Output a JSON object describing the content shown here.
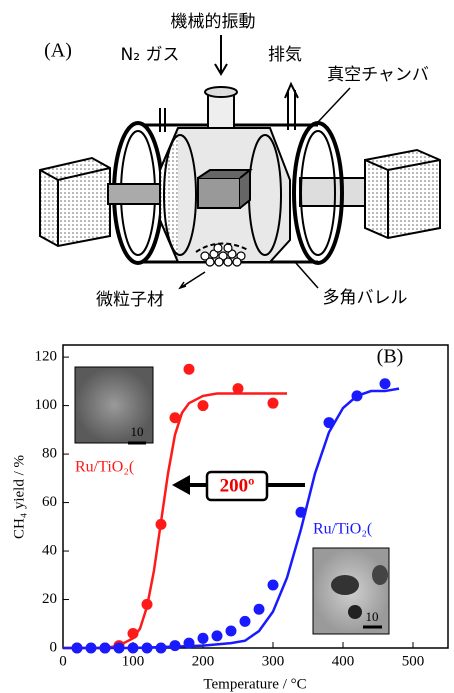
{
  "diagram": {
    "panel_label": "(A)",
    "vibration": "機械的振動",
    "gas": "N₂ ガス",
    "exhaust": "排気",
    "chamber": "真空チャンバ",
    "particles": "微粒子材",
    "barrel": "多角バレル"
  },
  "chart_data": {
    "type": "scatter",
    "panel_label": "(B)",
    "x_label": "Temperature / °C",
    "y_label": "CH₄ yield / %",
    "xlim": [
      0,
      550
    ],
    "ylim": [
      0,
      125
    ],
    "xticks": [
      0,
      100,
      200,
      300,
      400,
      500
    ],
    "yticks": [
      0,
      20,
      40,
      60,
      80,
      100,
      120
    ],
    "series": [
      {
        "name": "Ru/TiO₂(",
        "color": "#ff1a1a",
        "x": [
          20,
          60,
          80,
          100,
          120,
          140,
          160,
          180,
          200,
          250,
          300
        ],
        "values": [
          0,
          0,
          1,
          6,
          18,
          51,
          95,
          115,
          100,
          107,
          101
        ],
        "fit_x": [
          0,
          20,
          40,
          60,
          80,
          100,
          110,
          120,
          130,
          140,
          150,
          160,
          170,
          180,
          200,
          220,
          260,
          320
        ],
        "fit_values": [
          0,
          0,
          0,
          0,
          1,
          4,
          8,
          17,
          32,
          52,
          72,
          88,
          97,
          101,
          104,
          105,
          105,
          105
        ]
      },
      {
        "name": "Ru/TiO₂(",
        "color": "#1a1aff",
        "x": [
          20,
          40,
          60,
          80,
          100,
          120,
          140,
          160,
          180,
          200,
          220,
          240,
          260,
          280,
          300,
          340,
          380,
          420,
          460
        ],
        "values": [
          0,
          0,
          0,
          0,
          0,
          0,
          0,
          1,
          2,
          4,
          5,
          7,
          11,
          16,
          26,
          56,
          93,
          104,
          109
        ],
        "fit_x": [
          0,
          100,
          200,
          240,
          260,
          280,
          300,
          320,
          340,
          360,
          380,
          400,
          420,
          440,
          460,
          480
        ],
        "fit_values": [
          0,
          0,
          1,
          2,
          3,
          7,
          15,
          29,
          49,
          72,
          89,
          99,
          104,
          106,
          106,
          107
        ]
      }
    ],
    "annotations": {
      "shift": "200º",
      "scale_bars": [
        "10",
        "10"
      ]
    }
  }
}
